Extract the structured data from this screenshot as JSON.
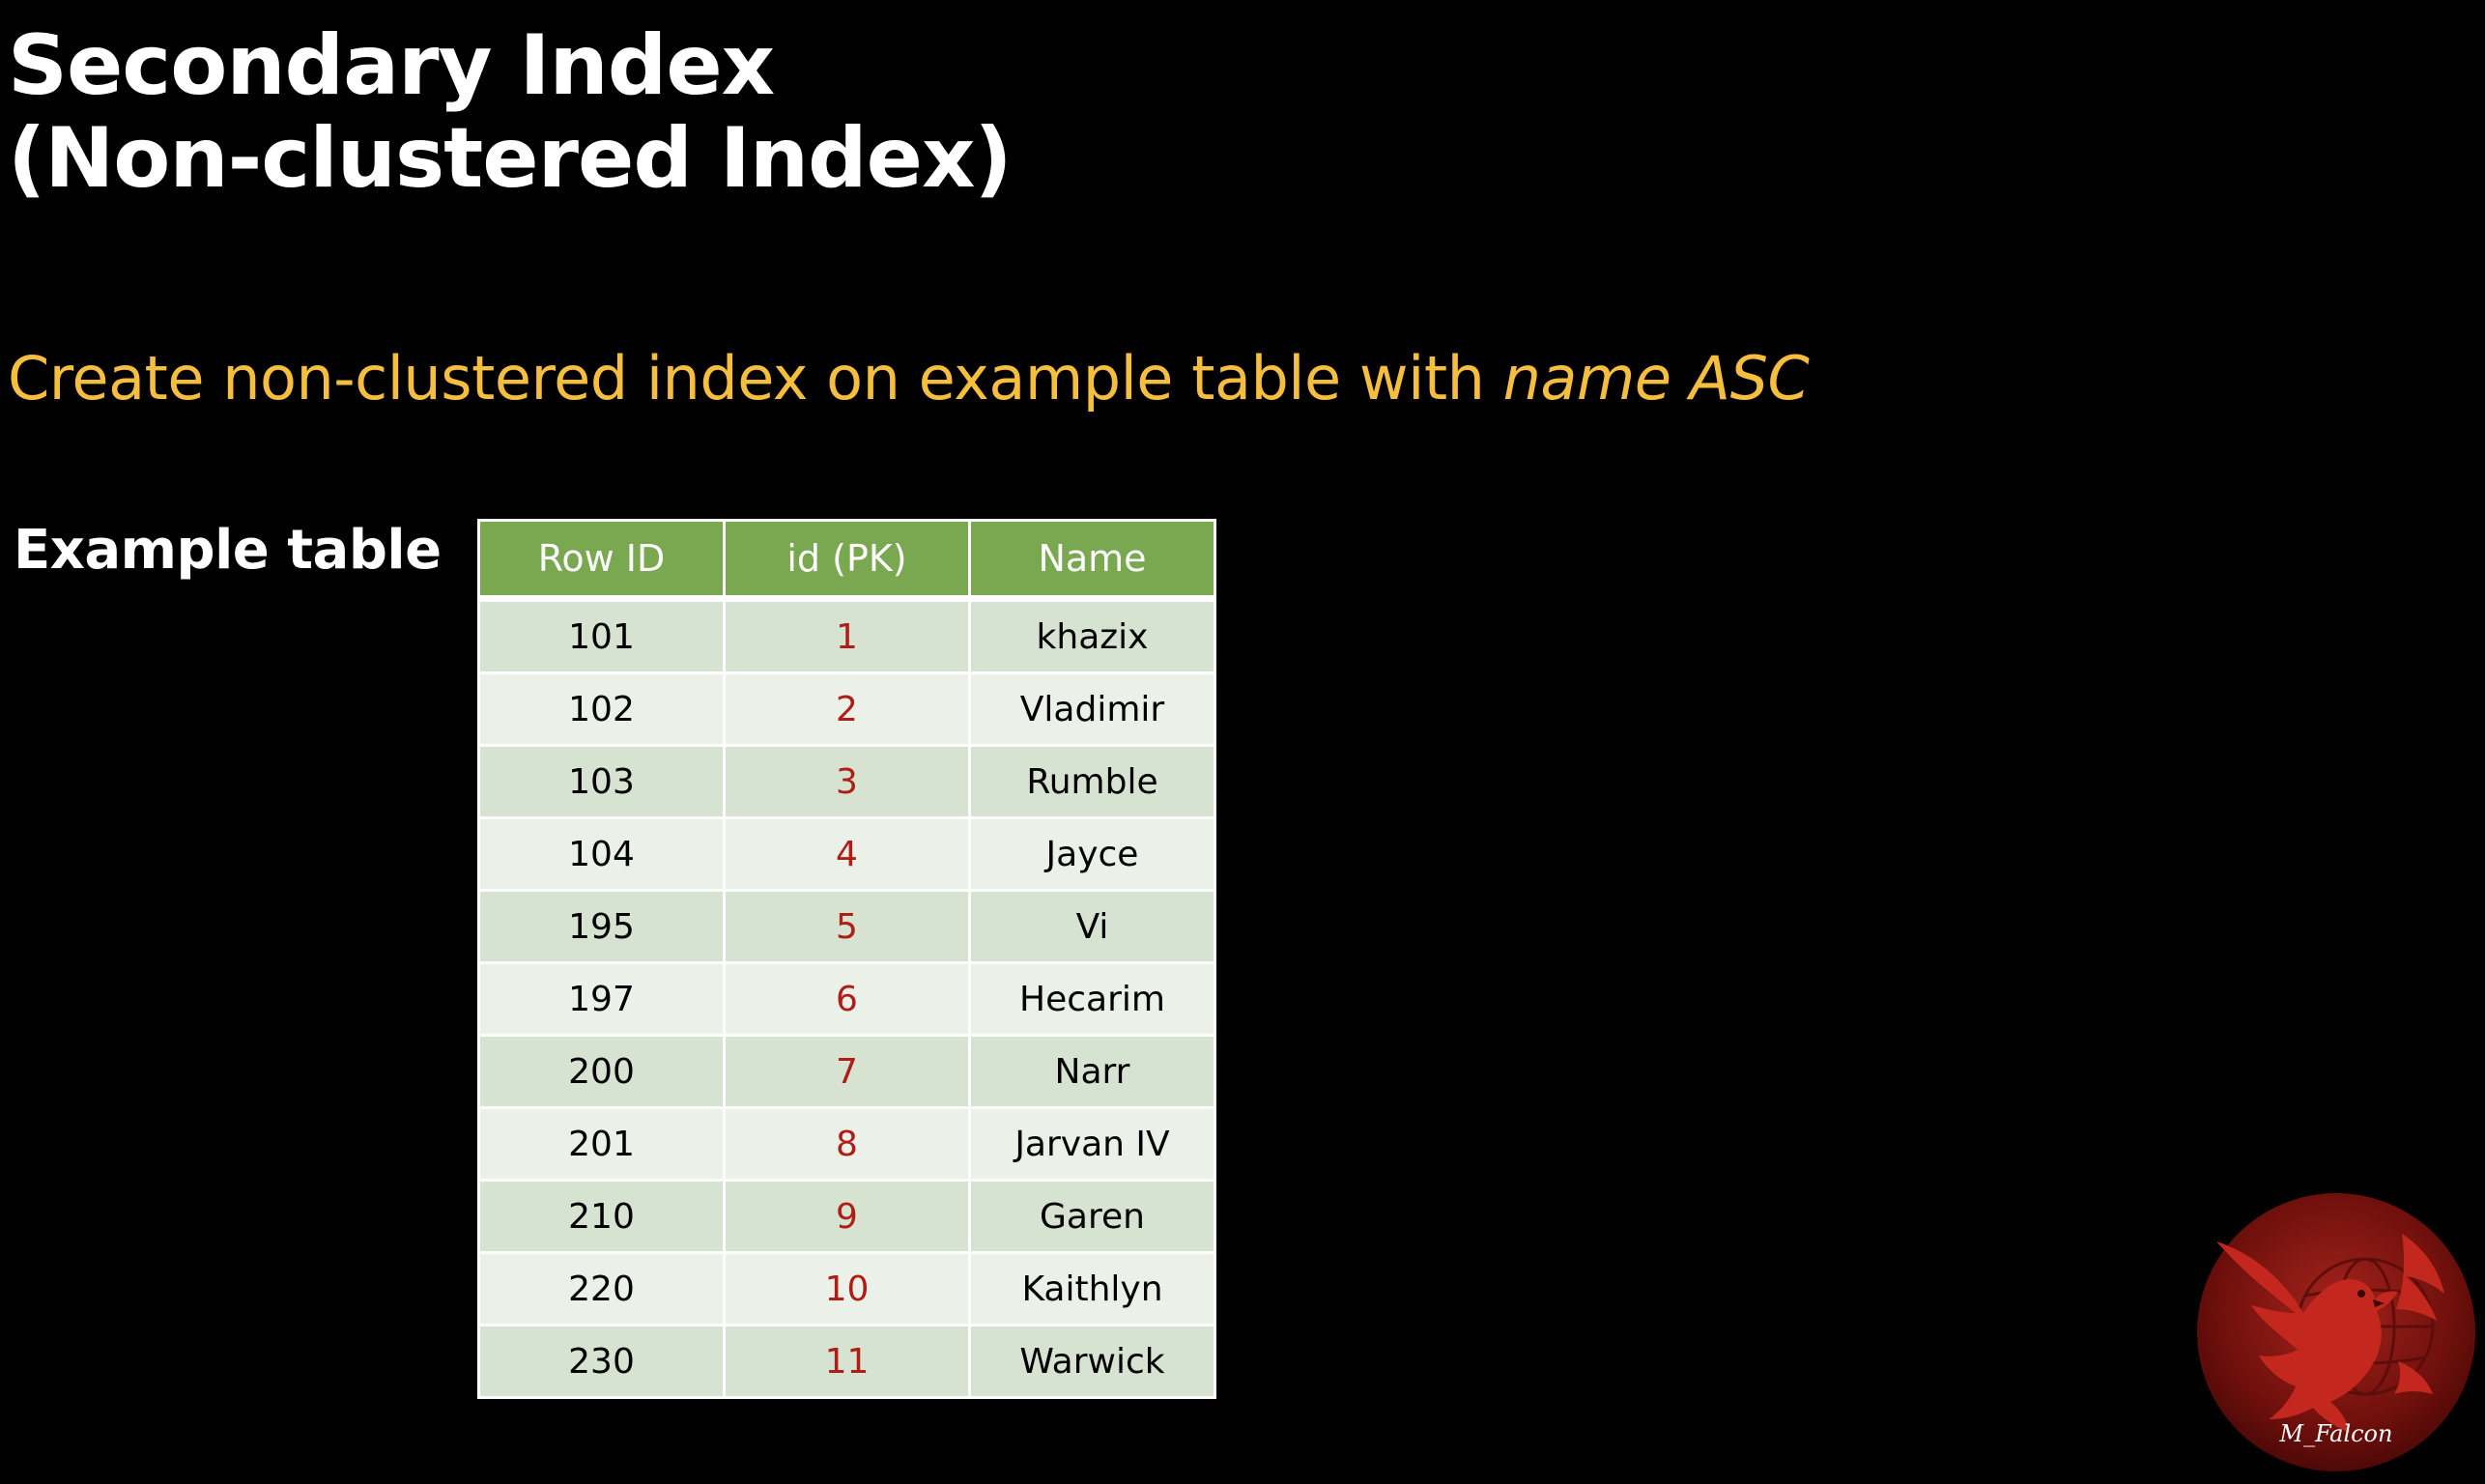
{
  "slide": {
    "title_line1": "Secondary Index",
    "title_line2": "(Non-clustered Index)",
    "subtitle_prefix": "Create non-clustered index on example table with ",
    "subtitle_emphasis": "name ASC",
    "example_label": "Example table",
    "accent_color": "#f6be3e",
    "header_color": "#79a851",
    "pk_color": "#b01d16"
  },
  "table": {
    "headers": [
      "Row ID",
      "id (PK)",
      "Name"
    ],
    "rows": [
      [
        "101",
        "1",
        "khazix"
      ],
      [
        "102",
        "2",
        "Vladimir"
      ],
      [
        "103",
        "3",
        "Rumble"
      ],
      [
        "104",
        "4",
        "Jayce"
      ],
      [
        "195",
        "5",
        "Vi"
      ],
      [
        "197",
        "6",
        "Hecarim"
      ],
      [
        "200",
        "7",
        "Narr"
      ],
      [
        "201",
        "8",
        "Jarvan IV"
      ],
      [
        "210",
        "9",
        "Garen"
      ],
      [
        "220",
        "10",
        "Kaithlyn"
      ],
      [
        "230",
        "11",
        "Warwick"
      ]
    ]
  },
  "logo": {
    "icon": "falcon-globe-icon",
    "text": "M_Falcon"
  }
}
